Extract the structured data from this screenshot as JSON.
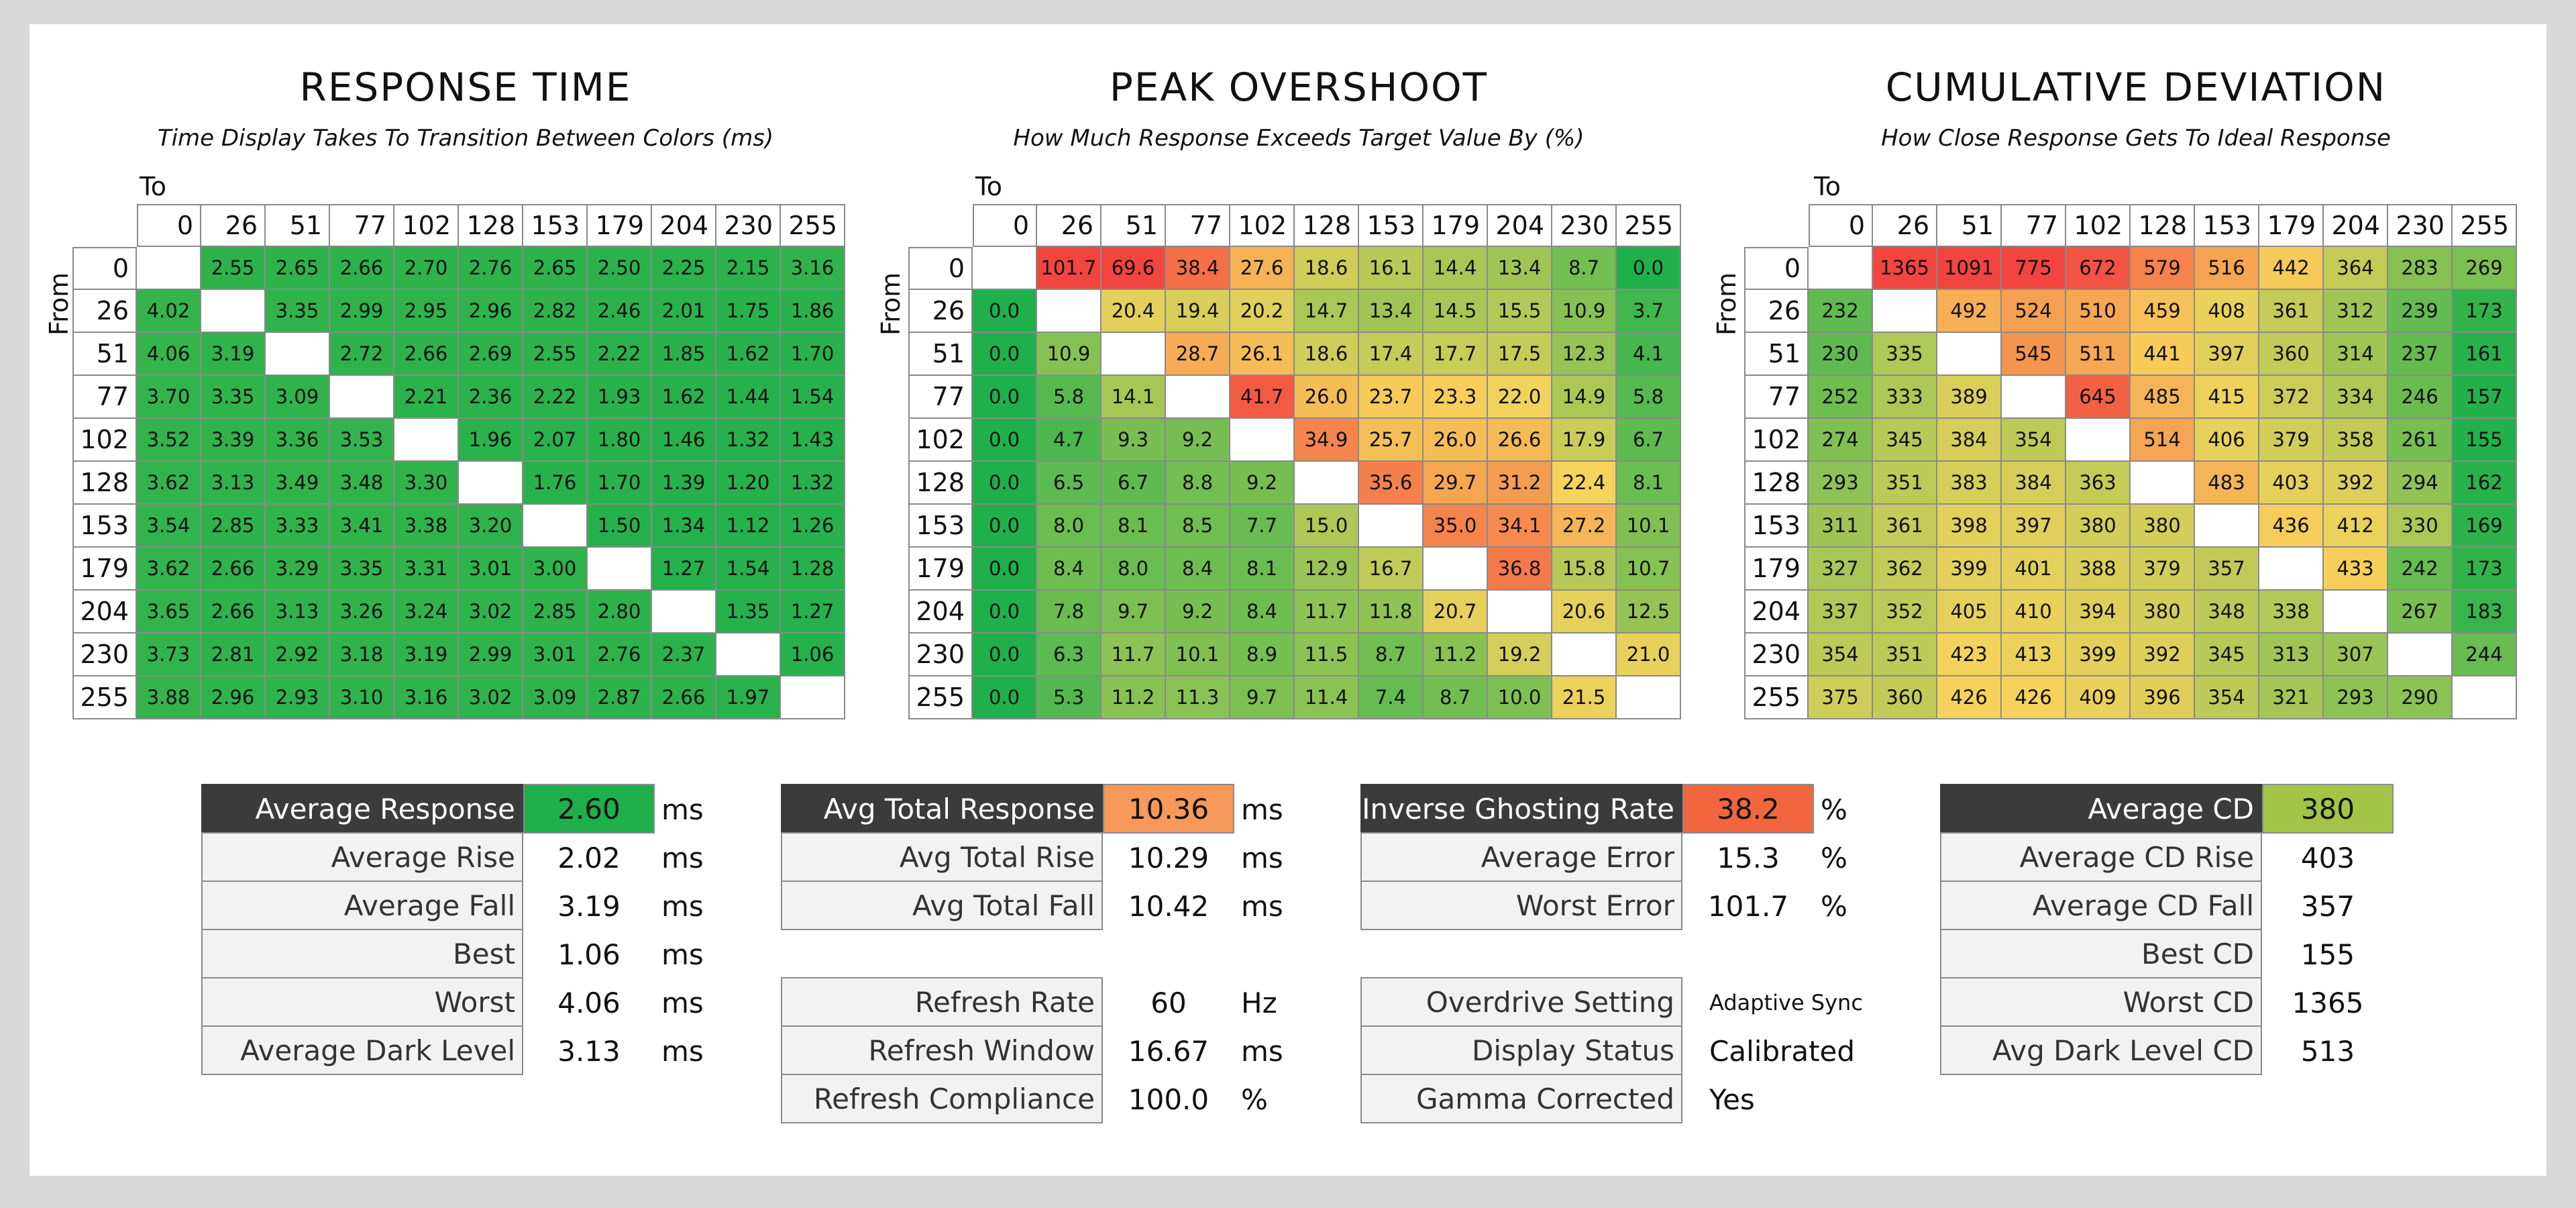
{
  "colors": {
    "scale_green": "#1fb04b",
    "scale_yellow": "#f6d35c",
    "scale_red": "#f2453f",
    "dark_label": "#3b3b3b",
    "label_bg": "#f2f2f2",
    "avg_response": "#1fb04b",
    "avg_total_response": "#f6995a",
    "inverse_ghosting": "#f2663f",
    "avg_cd": "#a2c548"
  },
  "chart_data": [
    {
      "type": "heatmap",
      "title": "RESPONSE TIME",
      "subtitle": "Time Display Takes To Transition Between Colors (ms)",
      "xlabel": "To",
      "ylabel": "From",
      "columns": [
        "0",
        "26",
        "51",
        "77",
        "102",
        "128",
        "153",
        "179",
        "204",
        "230",
        "255"
      ],
      "rows": [
        "0",
        "26",
        "51",
        "77",
        "102",
        "128",
        "153",
        "179",
        "204",
        "230",
        "255"
      ],
      "values": [
        [
          "",
          "2.55",
          "2.65",
          "2.66",
          "2.70",
          "2.76",
          "2.65",
          "2.50",
          "2.25",
          "2.15",
          "3.16"
        ],
        [
          "4.02",
          "",
          "3.35",
          "2.99",
          "2.95",
          "2.96",
          "2.82",
          "2.46",
          "2.01",
          "1.75",
          "1.86"
        ],
        [
          "4.06",
          "3.19",
          "",
          "2.72",
          "2.66",
          "2.69",
          "2.55",
          "2.22",
          "1.85",
          "1.62",
          "1.70"
        ],
        [
          "3.70",
          "3.35",
          "3.09",
          "",
          "2.21",
          "2.36",
          "2.22",
          "1.93",
          "1.62",
          "1.44",
          "1.54"
        ],
        [
          "3.52",
          "3.39",
          "3.36",
          "3.53",
          "",
          "1.96",
          "2.07",
          "1.80",
          "1.46",
          "1.32",
          "1.43"
        ],
        [
          "3.62",
          "3.13",
          "3.49",
          "3.48",
          "3.30",
          "",
          "1.76",
          "1.70",
          "1.39",
          "1.20",
          "1.32"
        ],
        [
          "3.54",
          "2.85",
          "3.33",
          "3.41",
          "3.38",
          "3.20",
          "",
          "1.50",
          "1.34",
          "1.12",
          "1.26"
        ],
        [
          "3.62",
          "2.66",
          "3.29",
          "3.35",
          "3.31",
          "3.01",
          "3.00",
          "",
          "1.27",
          "1.54",
          "1.28"
        ],
        [
          "3.65",
          "2.66",
          "3.13",
          "3.26",
          "3.24",
          "3.02",
          "2.85",
          "2.80",
          "",
          "1.35",
          "1.27"
        ],
        [
          "3.73",
          "2.81",
          "2.92",
          "3.18",
          "3.19",
          "2.99",
          "3.01",
          "2.76",
          "2.37",
          "",
          "1.06"
        ],
        [
          "3.88",
          "2.96",
          "2.93",
          "3.10",
          "3.16",
          "3.02",
          "3.09",
          "2.87",
          "2.66",
          "1.97",
          ""
        ]
      ]
    },
    {
      "type": "heatmap",
      "title": "PEAK OVERSHOOT",
      "subtitle": "How Much Response Exceeds Target Value By (%)",
      "xlabel": "To",
      "ylabel": "From",
      "columns": [
        "0",
        "26",
        "51",
        "77",
        "102",
        "128",
        "153",
        "179",
        "204",
        "230",
        "255"
      ],
      "rows": [
        "0",
        "26",
        "51",
        "77",
        "102",
        "128",
        "153",
        "179",
        "204",
        "230",
        "255"
      ],
      "values": [
        [
          "",
          "101.7",
          "69.6",
          "38.4",
          "27.6",
          "18.6",
          "16.1",
          "14.4",
          "13.4",
          "8.7",
          "0.0"
        ],
        [
          "0.0",
          "",
          "20.4",
          "19.4",
          "20.2",
          "14.7",
          "13.4",
          "14.5",
          "15.5",
          "10.9",
          "3.7"
        ],
        [
          "0.0",
          "10.9",
          "",
          "28.7",
          "26.1",
          "18.6",
          "17.4",
          "17.7",
          "17.5",
          "12.3",
          "4.1"
        ],
        [
          "0.0",
          "5.8",
          "14.1",
          "",
          "41.7",
          "26.0",
          "23.7",
          "23.3",
          "22.0",
          "14.9",
          "5.8"
        ],
        [
          "0.0",
          "4.7",
          "9.3",
          "9.2",
          "",
          "34.9",
          "25.7",
          "26.0",
          "26.6",
          "17.9",
          "6.7"
        ],
        [
          "0.0",
          "6.5",
          "6.7",
          "8.8",
          "9.2",
          "",
          "35.6",
          "29.7",
          "31.2",
          "22.4",
          "8.1"
        ],
        [
          "0.0",
          "8.0",
          "8.1",
          "8.5",
          "7.7",
          "15.0",
          "",
          "35.0",
          "34.1",
          "27.2",
          "10.1"
        ],
        [
          "0.0",
          "8.4",
          "8.0",
          "8.4",
          "8.1",
          "12.9",
          "16.7",
          "",
          "36.8",
          "15.8",
          "10.7"
        ],
        [
          "0.0",
          "7.8",
          "9.7",
          "9.2",
          "8.4",
          "11.7",
          "11.8",
          "20.7",
          "",
          "20.6",
          "12.5"
        ],
        [
          "0.0",
          "6.3",
          "11.7",
          "10.1",
          "8.9",
          "11.5",
          "8.7",
          "11.2",
          "19.2",
          "",
          "21.0"
        ],
        [
          "0.0",
          "5.3",
          "11.2",
          "11.3",
          "9.7",
          "11.4",
          "7.4",
          "8.7",
          "10.0",
          "21.5",
          ""
        ]
      ]
    },
    {
      "type": "heatmap",
      "title": "CUMULATIVE DEVIATION",
      "subtitle": "How Close Response Gets To Ideal Response",
      "xlabel": "To",
      "ylabel": "From",
      "columns": [
        "0",
        "26",
        "51",
        "77",
        "102",
        "128",
        "153",
        "179",
        "204",
        "230",
        "255"
      ],
      "rows": [
        "0",
        "26",
        "51",
        "77",
        "102",
        "128",
        "153",
        "179",
        "204",
        "230",
        "255"
      ],
      "values": [
        [
          "",
          "1365",
          "1091",
          "775",
          "672",
          "579",
          "516",
          "442",
          "364",
          "283",
          "269"
        ],
        [
          "232",
          "",
          "492",
          "524",
          "510",
          "459",
          "408",
          "361",
          "312",
          "239",
          "173"
        ],
        [
          "230",
          "335",
          "",
          "545",
          "511",
          "441",
          "397",
          "360",
          "314",
          "237",
          "161"
        ],
        [
          "252",
          "333",
          "389",
          "",
          "645",
          "485",
          "415",
          "372",
          "334",
          "246",
          "157"
        ],
        [
          "274",
          "345",
          "384",
          "354",
          "",
          "514",
          "406",
          "379",
          "358",
          "261",
          "155"
        ],
        [
          "293",
          "351",
          "383",
          "384",
          "363",
          "",
          "483",
          "403",
          "392",
          "294",
          "162"
        ],
        [
          "311",
          "361",
          "398",
          "397",
          "380",
          "380",
          "",
          "436",
          "412",
          "330",
          "169"
        ],
        [
          "327",
          "362",
          "399",
          "401",
          "388",
          "379",
          "357",
          "",
          "433",
          "242",
          "173"
        ],
        [
          "337",
          "352",
          "405",
          "410",
          "394",
          "380",
          "348",
          "338",
          "",
          "267",
          "183"
        ],
        [
          "354",
          "351",
          "423",
          "413",
          "399",
          "392",
          "345",
          "313",
          "307",
          "",
          "244"
        ],
        [
          "375",
          "360",
          "426",
          "426",
          "409",
          "396",
          "354",
          "321",
          "293",
          "290",
          ""
        ]
      ]
    }
  ],
  "stats": {
    "response": [
      {
        "label": "Average Response",
        "value": "2.60",
        "unit": "ms",
        "highlight": true
      },
      {
        "label": "Average Rise",
        "value": "2.02",
        "unit": "ms"
      },
      {
        "label": "Average Fall",
        "value": "3.19",
        "unit": "ms"
      },
      {
        "label": "Best",
        "value": "1.06",
        "unit": "ms"
      },
      {
        "label": "Worst",
        "value": "4.06",
        "unit": "ms"
      },
      {
        "label": "Average Dark Level",
        "value": "3.13",
        "unit": "ms"
      }
    ],
    "total": [
      {
        "label": "Avg Total Response",
        "value": "10.36",
        "unit": "ms",
        "highlight": true
      },
      {
        "label": "Avg Total Rise",
        "value": "10.29",
        "unit": "ms"
      },
      {
        "label": "Avg Total Fall",
        "value": "10.42",
        "unit": "ms"
      }
    ],
    "refresh": [
      {
        "label": "Refresh Rate",
        "value": "60",
        "unit": "Hz"
      },
      {
        "label": "Refresh Window",
        "value": "16.67",
        "unit": "ms"
      },
      {
        "label": "Refresh Compliance",
        "value": "100.0",
        "unit": "%"
      }
    ],
    "ghosting": [
      {
        "label": "Inverse Ghosting Rate",
        "value": "38.2",
        "unit": "%",
        "highlight": true
      },
      {
        "label": "Average Error",
        "value": "15.3",
        "unit": "%"
      },
      {
        "label": "Worst Error",
        "value": "101.7",
        "unit": "%"
      }
    ],
    "settings": [
      {
        "label": "Overdrive Setting",
        "value": "Adaptive Sync",
        "unit": ""
      },
      {
        "label": "Display Status",
        "value": "Calibrated",
        "unit": ""
      },
      {
        "label": "Gamma Corrected",
        "value": "Yes",
        "unit": ""
      }
    ],
    "cd": [
      {
        "label": "Average CD",
        "value": "380",
        "unit": "",
        "highlight": true
      },
      {
        "label": "Average CD Rise",
        "value": "403",
        "unit": ""
      },
      {
        "label": "Average CD Fall",
        "value": "357",
        "unit": ""
      },
      {
        "label": "Best CD",
        "value": "155",
        "unit": ""
      },
      {
        "label": "Worst CD",
        "value": "1365",
        "unit": ""
      },
      {
        "label": "Avg Dark Level CD",
        "value": "513",
        "unit": ""
      }
    ]
  }
}
